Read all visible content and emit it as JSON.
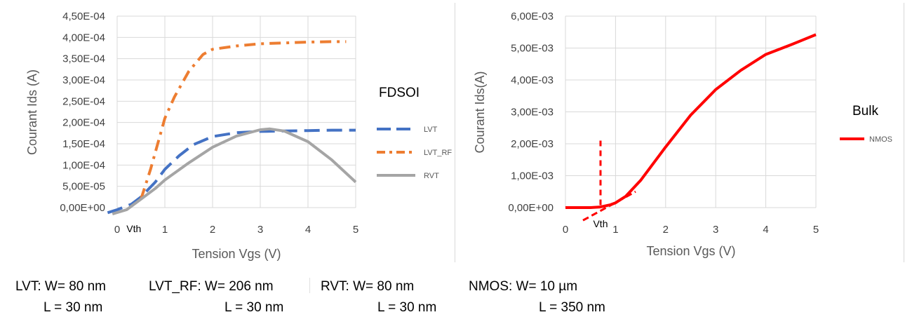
{
  "chart_data": [
    {
      "type": "line",
      "xlabel": "Tension Vgs (V)",
      "ylabel": "Courant Ids (A)",
      "xlim": [
        0,
        5
      ],
      "ylim": [
        0,
        0.00045
      ],
      "x_ticks": [
        "0",
        "1",
        "2",
        "3",
        "4",
        "5"
      ],
      "y_ticks": [
        "0,00E+00",
        "5,00E-05",
        "1,00E-04",
        "1,50E-04",
        "2,00E-04",
        "2,50E-04",
        "3,00E-04",
        "3,50E-04",
        "4,00E-04",
        "4,50E-04"
      ],
      "grid": true,
      "legend_title": "FDSOI",
      "legend_position": "right",
      "annotations": [
        {
          "text": "Vth",
          "x": 0.35
        }
      ],
      "series": [
        {
          "name": "LVT",
          "color": "#4472C4",
          "dash": "long-dash",
          "x": [
            -0.2,
            0,
            0.3,
            0.5,
            0.8,
            1.0,
            1.3,
            1.6,
            2.0,
            2.5,
            3.0,
            3.5,
            4.0,
            4.5,
            5.0
          ],
          "y": [
            -1.2e-05,
            -5e-06,
            8e-06,
            2.5e-05,
            6e-05,
            9e-05,
            0.000122,
            0.000148,
            0.000167,
            0.000176,
            0.000179,
            0.00018,
            0.000181,
            0.000182,
            0.000182
          ]
        },
        {
          "name": "LVT_RF",
          "color": "#ED7D31",
          "dash": "dash-dot",
          "x": [
            0.5,
            0.7,
            0.9,
            1.0,
            1.2,
            1.5,
            1.8,
            2.0,
            2.5,
            3.0,
            3.5,
            4.0,
            4.5,
            4.8
          ],
          "y": [
            2e-05,
            9e-05,
            0.00017,
            0.00021,
            0.00026,
            0.00032,
            0.00036,
            0.000372,
            0.00038,
            0.000385,
            0.000387,
            0.000389,
            0.00039,
            0.00039
          ]
        },
        {
          "name": "RVT",
          "color": "#A5A5A5",
          "dash": "solid",
          "x": [
            -0.1,
            0.2,
            0.5,
            0.8,
            1.0,
            1.5,
            2.0,
            2.5,
            3.0,
            3.2,
            3.5,
            4.0,
            4.5,
            5.0
          ],
          "y": [
            -1.5e-05,
            -5e-06,
            2e-05,
            4.5e-05,
            6.5e-05,
            0.000105,
            0.000142,
            0.000168,
            0.000183,
            0.000185,
            0.00018,
            0.000155,
            0.000112,
            6e-05
          ]
        }
      ]
    },
    {
      "type": "line",
      "xlabel": "Tension Vgs (V)",
      "ylabel": "Courant Ids(A)",
      "xlim": [
        0,
        5
      ],
      "ylim": [
        0,
        0.006
      ],
      "x_ticks": [
        "0",
        "1",
        "2",
        "3",
        "4",
        "5"
      ],
      "y_ticks": [
        "0,00E+00",
        "1,00E-03",
        "2,00E-03",
        "3,00E-03",
        "4,00E-03",
        "5,00E-03",
        "6,00E-03"
      ],
      "grid": true,
      "legend_title": "Bulk",
      "legend_position": "right",
      "annotations": [
        {
          "text": "Vth",
          "x": 0.7
        }
      ],
      "series": [
        {
          "name": "NMOS",
          "color": "#FF0000",
          "dash": "solid",
          "x": [
            0,
            0.3,
            0.5,
            0.7,
            0.9,
            1.0,
            1.2,
            1.5,
            2.0,
            2.5,
            3.0,
            3.5,
            4.0,
            4.5,
            5.0
          ],
          "y": [
            0,
            0,
            0,
            2e-05,
            9e-05,
            0.00015,
            0.00035,
            0.00085,
            0.0019,
            0.0029,
            0.0037,
            0.0043,
            0.0048,
            0.0051,
            0.00542
          ]
        }
      ]
    }
  ],
  "specs": [
    {
      "w": "LVT: W= 80 nm",
      "l": "L = 30 nm"
    },
    {
      "w": "LVT_RF: W= 206 nm",
      "l": "L = 30 nm"
    },
    {
      "w": "RVT: W= 80 nm",
      "l": "L = 30 nm"
    },
    {
      "w": "NMOS: W= 10 µm",
      "l": "L = 350 nm"
    }
  ]
}
